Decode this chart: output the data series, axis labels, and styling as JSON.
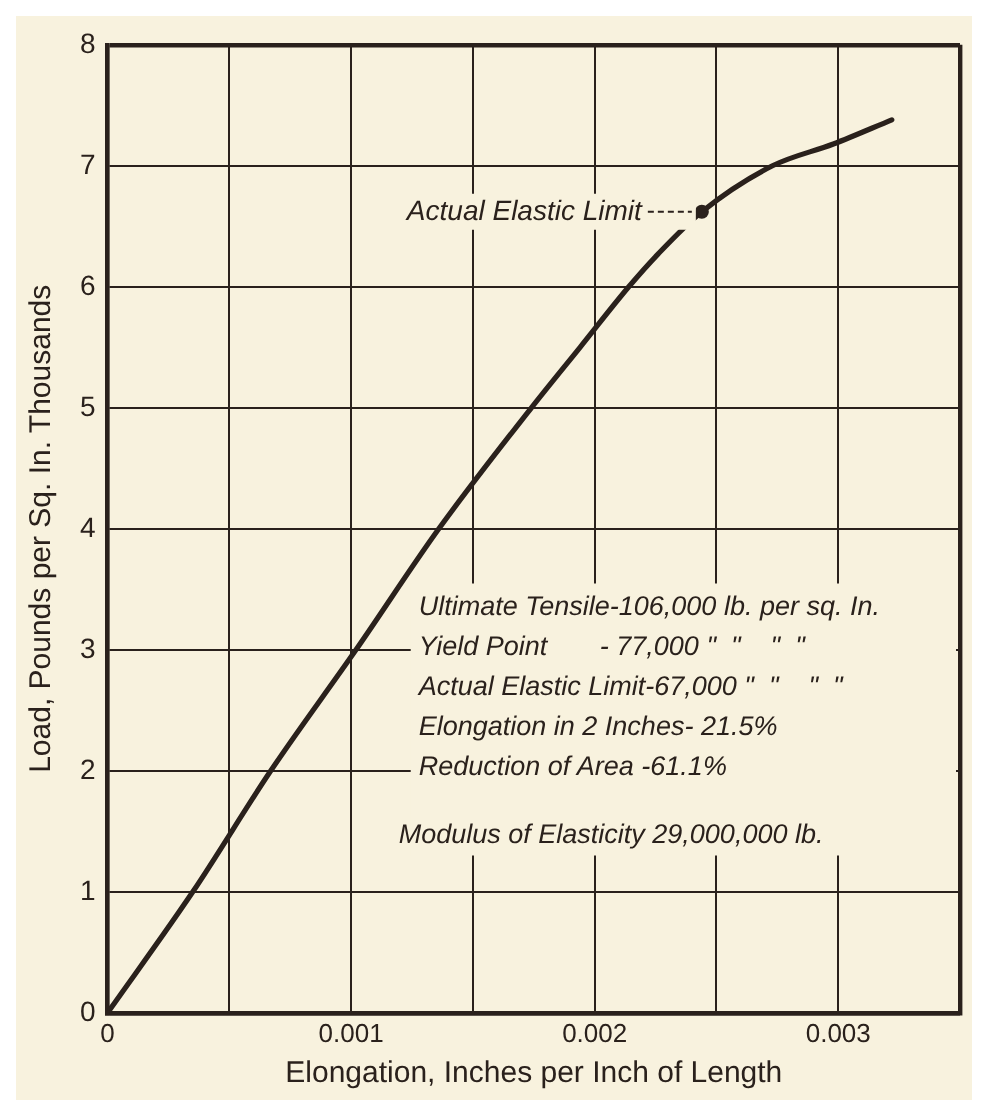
{
  "chart_data": {
    "type": "line",
    "xlabel": "Elongation, Inches per Inch of Length",
    "ylabel": "Load, Pounds per Sq. In. Thousands",
    "x": [
      0,
      0.00035,
      0.00067,
      0.00102,
      0.00136,
      0.00174,
      0.00194,
      0.00214,
      0.00226,
      0.00244,
      0.00273,
      0.00298,
      0.00322
    ],
    "series": [
      {
        "color": "#2a211c",
        "values": [
          0,
          1,
          2,
          3,
          4,
          5,
          5.5,
          6,
          6.27,
          6.62,
          7,
          7.18,
          7.38
        ]
      }
    ],
    "xlim": [
      0,
      0.0035
    ],
    "xticks": [
      0,
      {
        "value": 0.0005,
        "label": null
      },
      0.001,
      {
        "value": 0.0015,
        "label": null
      },
      0.002,
      {
        "value": 0.0025,
        "label": null
      },
      0.003,
      {
        "value": 0.0035,
        "label": null
      }
    ],
    "ylim": [
      0,
      8
    ],
    "yticks": [
      0,
      1,
      2,
      3,
      4,
      5,
      6,
      7,
      8
    ],
    "grid": true,
    "legend": false,
    "marker": "none",
    "line_style": "solid",
    "annotations": [
      {
        "text": "Actual Elastic Limit",
        "x": 0.00244,
        "y": 6.62
      },
      "Ultimate Tensile-106,000 lb. per sq. In.",
      "Yield Point       - 77,000 \"  \"    \"  \"",
      "Actual Elastic Limit-67,000 \"  \"    \"  \"",
      "Elongation in 2 Inches- 21.5%",
      "Reduction of Area -61.1%",
      "Modulus of Elasticity 29,000,000 lb."
    ]
  }
}
